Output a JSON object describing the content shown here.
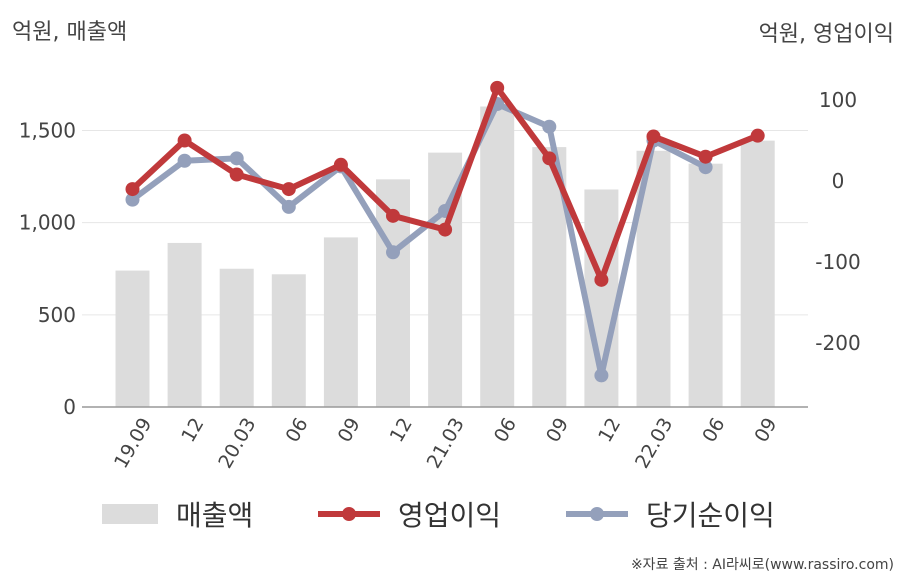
{
  "units": {
    "left": "억원, 매출액",
    "right": "억원, 영업이익"
  },
  "source": "※자료 출처 : AI라씨로(www.rassiro.com)",
  "colors": {
    "bar": "#dcdcdc",
    "operating_profit": "#c0393b",
    "net_income": "#94a0bb",
    "grid": "#e6e6e6"
  },
  "chart_data": {
    "type": "bar",
    "categories": [
      "19.09",
      "12",
      "20.03",
      "06",
      "09",
      "12",
      "21.03",
      "06",
      "09",
      "12",
      "22.03",
      "06",
      "09"
    ],
    "left_axis": {
      "ylim": [
        0,
        1800
      ],
      "ticks": [
        0,
        500,
        1000,
        1500
      ],
      "tick_labels": [
        "0",
        "500",
        "1,000",
        "1,500"
      ]
    },
    "right_axis": {
      "ylim": [
        -280,
        115
      ],
      "ticks": [
        -200,
        -100,
        0,
        100
      ],
      "tick_labels": [
        "-200",
        "-100",
        "0",
        "100"
      ]
    },
    "series": [
      {
        "name": "매출액",
        "type": "bar",
        "axis": "left",
        "values": [
          740,
          890,
          750,
          720,
          920,
          1235,
          1380,
          1630,
          1410,
          1180,
          1390,
          1320,
          1445
        ]
      },
      {
        "name": "영업이익",
        "type": "line",
        "axis": "right",
        "values": [
          -10,
          50,
          8,
          -10,
          20,
          -43,
          -60,
          115,
          28,
          -122,
          55,
          30,
          56
        ]
      },
      {
        "name": "당기순이익",
        "type": "line",
        "axis": "right",
        "values": [
          -23,
          25,
          28,
          -32,
          18,
          -88,
          -37,
          95,
          67,
          -240,
          50,
          17,
          null
        ]
      }
    ],
    "grid": true,
    "legend_position": "bottom"
  }
}
